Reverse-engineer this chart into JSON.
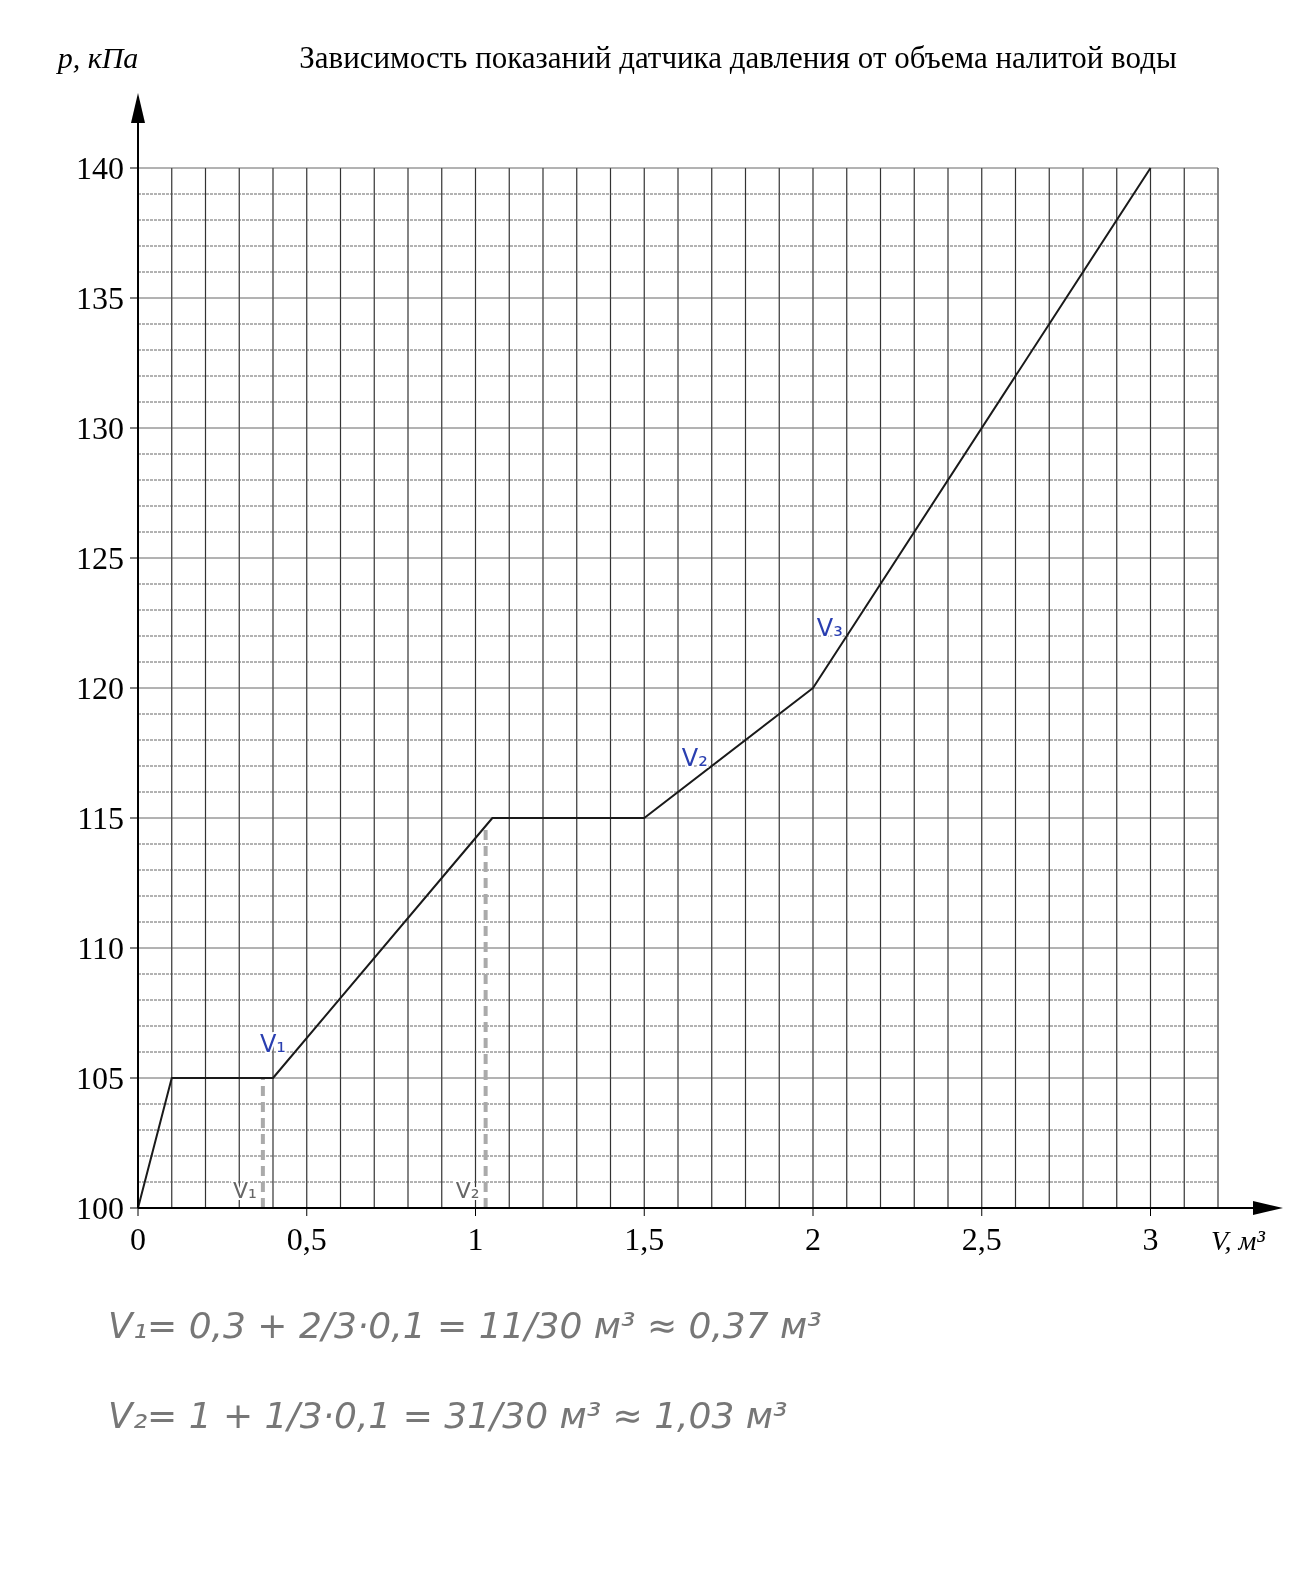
{
  "chart_data": {
    "type": "line",
    "title": "Зависимость показаний датчика давления от объема налитой воды",
    "xlabel": "V, м³",
    "ylabel": "p, кПа",
    "x": [
      0,
      0.1,
      0.4,
      1.05,
      1.5,
      2,
      3
    ],
    "series": [
      {
        "color": "#1a1a1a",
        "values": [
          100,
          105,
          105,
          115,
          115,
          120,
          140
        ]
      }
    ],
    "xlim": [
      0,
      3.2
    ],
    "ylim": [
      100,
      140
    ],
    "xticks": [
      0,
      {
        "value": 0.5,
        "label": "0,5"
      },
      1,
      {
        "value": 1.5,
        "label": "1,5"
      },
      2,
      {
        "value": 2.5,
        "label": "2,5"
      },
      3
    ],
    "yticks": [
      100,
      105,
      110,
      115,
      120,
      125,
      130,
      135,
      140
    ],
    "grid": true,
    "marker": "none",
    "line_style": "solid",
    "ref_lines": [
      {
        "axis": "x",
        "value": 0.37,
        "label": "V₁",
        "color": "#aaaaaa",
        "line_style": "dashed"
      },
      {
        "axis": "x",
        "value": 1.03,
        "label": "V₂",
        "color": "#aaaaaa",
        "line_style": "dashed"
      }
    ],
    "annotations": [
      {
        "text": "V₁",
        "x": 0.45,
        "y": 106
      },
      {
        "text": "V₂",
        "x": 1.7,
        "y": 117
      },
      {
        "text": "V₃",
        "x": 2.1,
        "y": 122
      },
      "V₁= 0,3 + 2/3·0,1 = 11/30 м³ ≈ 0,37 м³",
      "V₂= 1 + 1/3·0,1 = 31/30 м³ ≈ 1,03 м³"
    ]
  }
}
